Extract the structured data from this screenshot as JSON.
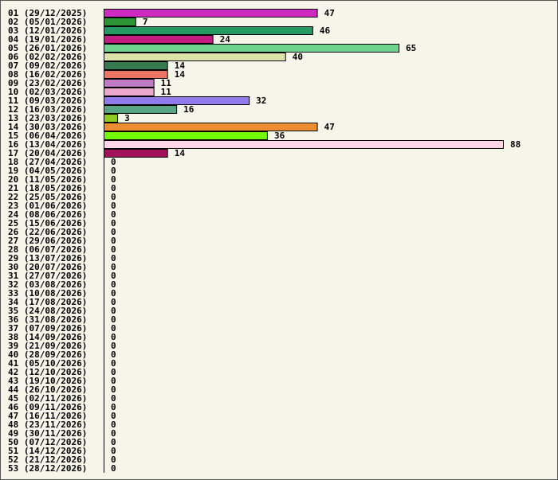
{
  "chart_data": {
    "type": "bar",
    "orientation": "horizontal",
    "title": "",
    "xlabel": "",
    "ylabel": "",
    "xlim": [
      0,
      88
    ],
    "grid": false,
    "categories": [
      "01 (29/12/2025)",
      "02 (05/01/2026)",
      "03 (12/01/2026)",
      "04 (19/01/2026)",
      "05 (26/01/2026)",
      "06 (02/02/2026)",
      "07 (09/02/2026)",
      "08 (16/02/2026)",
      "09 (23/02/2026)",
      "10 (02/03/2026)",
      "11 (09/03/2026)",
      "12 (16/03/2026)",
      "13 (23/03/2026)",
      "14 (30/03/2026)",
      "15 (06/04/2026)",
      "16 (13/04/2026)",
      "17 (20/04/2026)",
      "18 (27/04/2026)",
      "19 (04/05/2026)",
      "20 (11/05/2026)",
      "21 (18/05/2026)",
      "22 (25/05/2026)",
      "23 (01/06/2026)",
      "24 (08/06/2026)",
      "25 (15/06/2026)",
      "26 (22/06/2026)",
      "27 (29/06/2026)",
      "28 (06/07/2026)",
      "29 (13/07/2026)",
      "30 (20/07/2026)",
      "31 (27/07/2026)",
      "32 (03/08/2026)",
      "33 (10/08/2026)",
      "34 (17/08/2026)",
      "35 (24/08/2026)",
      "36 (31/08/2026)",
      "37 (07/09/2026)",
      "38 (14/09/2026)",
      "39 (21/09/2026)",
      "40 (28/09/2026)",
      "41 (05/10/2026)",
      "42 (12/10/2026)",
      "43 (19/10/2026)",
      "44 (26/10/2026)",
      "45 (02/11/2026)",
      "46 (09/11/2026)",
      "47 (16/11/2026)",
      "48 (23/11/2026)",
      "49 (30/11/2026)",
      "50 (07/12/2026)",
      "51 (14/12/2026)",
      "52 (21/12/2026)",
      "53 (28/12/2026)"
    ],
    "values": [
      47,
      7,
      46,
      24,
      65,
      40,
      14,
      14,
      11,
      11,
      32,
      16,
      3,
      47,
      36,
      88,
      14,
      0,
      0,
      0,
      0,
      0,
      0,
      0,
      0,
      0,
      0,
      0,
      0,
      0,
      0,
      0,
      0,
      0,
      0,
      0,
      0,
      0,
      0,
      0,
      0,
      0,
      0,
      0,
      0,
      0,
      0,
      0,
      0,
      0,
      0,
      0,
      0
    ],
    "colors": [
      "#cf2ac0",
      "#2e9535",
      "#269862",
      "#c21b82",
      "#6dd48d",
      "#dde3a8",
      "#357a4e",
      "#ee7563",
      "#c07ac4",
      "#eba8cb",
      "#8f7bea",
      "#57a585",
      "#8fca22",
      "#ec8d32",
      "#73f90a",
      "#fed6e6",
      "#a3115a"
    ]
  }
}
